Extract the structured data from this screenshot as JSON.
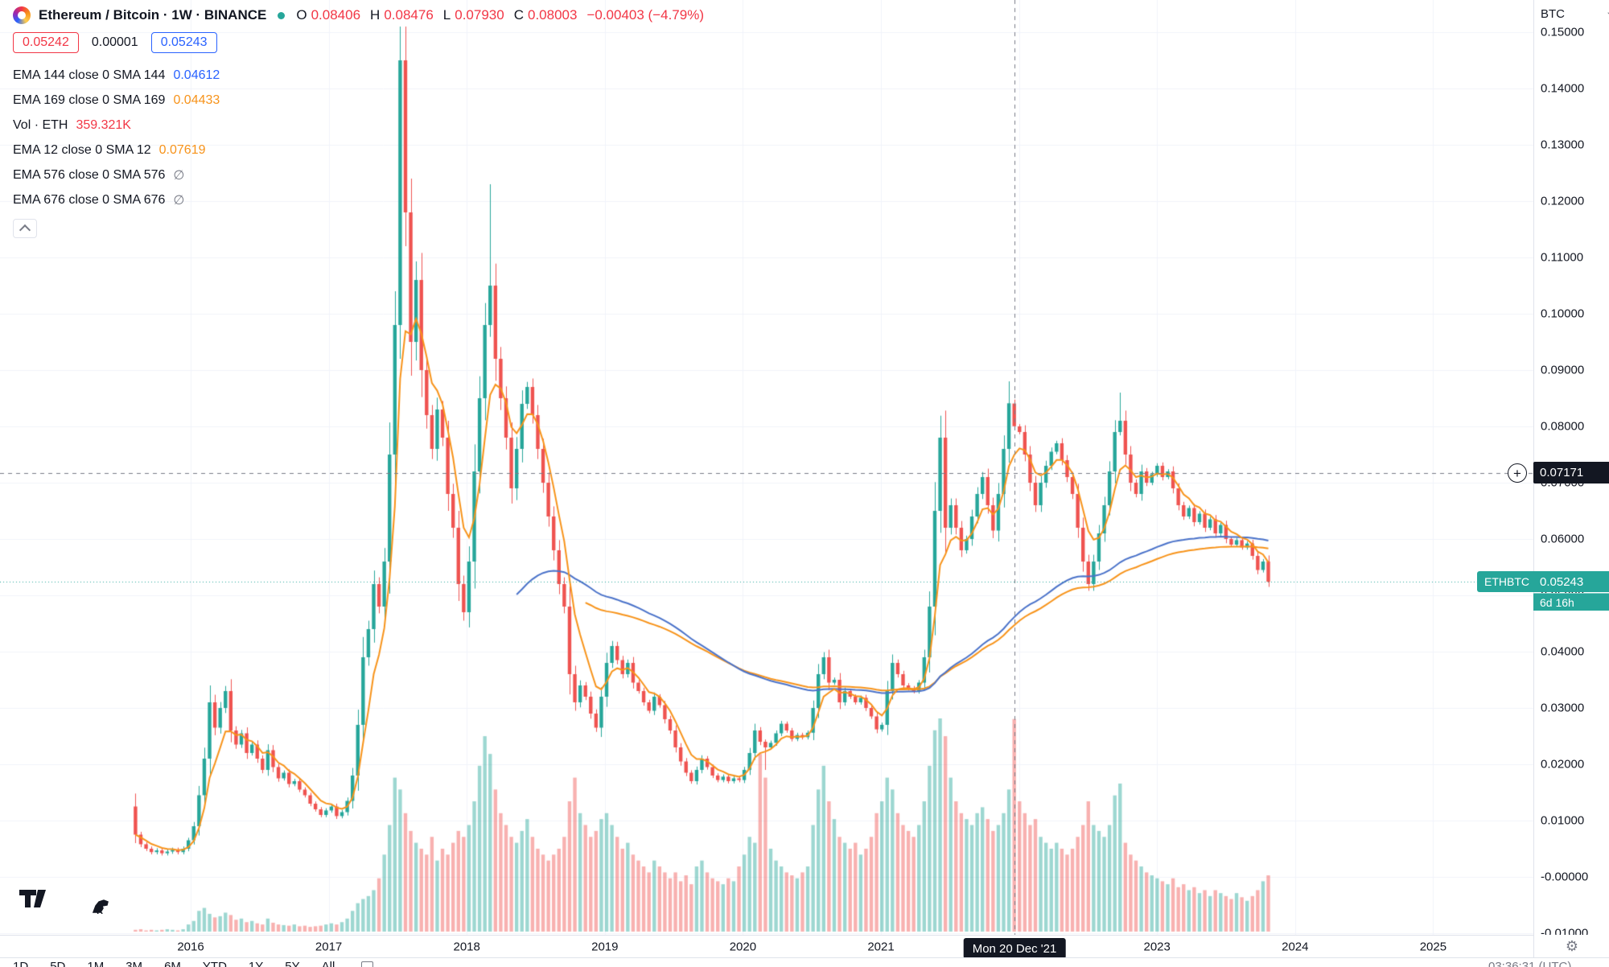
{
  "header": {
    "symbol_title": "Ethereum / Bitcoin · 1W · BINANCE",
    "ohlc": {
      "o_label": "O",
      "o": "0.08406",
      "h_label": "H",
      "h": "0.08476",
      "l_label": "L",
      "l": "0.07930",
      "c_label": "C",
      "c": "0.08003",
      "change": "−0.00403 (−4.79%)"
    },
    "bid": "0.05242",
    "spread": "0.00001",
    "ask": "0.05243"
  },
  "legend": {
    "rows": [
      {
        "label": "EMA 144 close 0 SMA 144",
        "value": "0.04612",
        "color": "#2962FF"
      },
      {
        "label": "EMA 169 close 0 SMA 169",
        "value": "0.04433",
        "color": "#F7931A"
      },
      {
        "label": "Vol · ETH",
        "value": "359.321K",
        "color": "#F23645"
      },
      {
        "label": "EMA 12 close 0 SMA 12",
        "value": "0.07619",
        "color": "#F7931A"
      },
      {
        "label": "EMA 576 close 0 SMA 576",
        "value": "∅",
        "color": "#787B86"
      },
      {
        "label": "EMA 676 close 0 SMA 676",
        "value": "∅",
        "color": "#787B86"
      }
    ]
  },
  "price_axis": {
    "currency": "BTC",
    "labels": [
      {
        "text": "0.15000",
        "value": 0.15
      },
      {
        "text": "0.14000",
        "value": 0.14
      },
      {
        "text": "0.13000",
        "value": 0.13
      },
      {
        "text": "0.12000",
        "value": 0.12
      },
      {
        "text": "0.11000",
        "value": 0.11
      },
      {
        "text": "0.10000",
        "value": 0.1
      },
      {
        "text": "0.09000",
        "value": 0.09
      },
      {
        "text": "0.08000",
        "value": 0.08
      },
      {
        "text": "0.07000",
        "value": 0.07
      },
      {
        "text": "0.06000",
        "value": 0.06
      },
      {
        "text": "0.05000",
        "value": 0.05
      },
      {
        "text": "0.04000",
        "value": 0.04
      },
      {
        "text": "0.03000",
        "value": 0.03
      },
      {
        "text": "0.02000",
        "value": 0.02
      },
      {
        "text": "0.01000",
        "value": 0.01
      },
      {
        "text": "-0.00000",
        "value": 0.0
      },
      {
        "text": "-0.01000",
        "value": -0.01
      }
    ]
  },
  "time_axis": {
    "labels": [
      {
        "text": "2016",
        "year": 2016
      },
      {
        "text": "2017",
        "year": 2017
      },
      {
        "text": "2018",
        "year": 2018
      },
      {
        "text": "2019",
        "year": 2019
      },
      {
        "text": "2020",
        "year": 2020
      },
      {
        "text": "2021",
        "year": 2021
      },
      {
        "text": "2022",
        "year": 2022
      },
      {
        "text": "2023",
        "year": 2023
      },
      {
        "text": "2024",
        "year": 2024
      },
      {
        "text": "2025",
        "year": 2025
      }
    ],
    "crosshair_label": "Mon 20 Dec '21",
    "clock": "03:36:31 (UTC)"
  },
  "overlays": {
    "crosshair_price": "0.07171",
    "symbol_chip": "ETHBTC",
    "last_price": "0.05243",
    "countdown": "6d 16h"
  },
  "bottom_toolbar": {
    "ranges": [
      "1D",
      "5D",
      "1M",
      "3M",
      "6M",
      "YTD",
      "1Y",
      "5Y",
      "All"
    ]
  },
  "colors": {
    "up": "#26A69A",
    "down": "#EF5350",
    "up_vol": "rgba(38,166,154,0.45)",
    "down_vol": "rgba(239,83,80,0.45)",
    "ema_fast": "#F7931A",
    "ema_144": "#4A72C9",
    "ema_169": "#F7931A",
    "grid": "#F0F3FA",
    "crosshair": "#787B86",
    "last_price_line": "#26A69A",
    "label_dark_bg": "#131722",
    "accent_teal": "#26A69A",
    "red": "#F23645",
    "blue": "#2962FF",
    "axis_text": "#131722"
  },
  "chart_data": {
    "type": "candlestick",
    "symbol": "ETHBTC",
    "timeframe": "1W",
    "ylim": [
      -0.01,
      0.15
    ],
    "x_start_year": 2015.6,
    "weeks_per_candle": 2,
    "closes": [
      0.0075,
      0.0058,
      0.005,
      0.0044,
      0.0047,
      0.0042,
      0.0045,
      0.0048,
      0.0044,
      0.005,
      0.0065,
      0.009,
      0.0145,
      0.021,
      0.031,
      0.0265,
      0.03,
      0.033,
      0.026,
      0.0235,
      0.0255,
      0.022,
      0.0235,
      0.021,
      0.019,
      0.0225,
      0.0195,
      0.0175,
      0.0185,
      0.0165,
      0.017,
      0.0155,
      0.0145,
      0.013,
      0.012,
      0.011,
      0.0118,
      0.0125,
      0.0108,
      0.0115,
      0.0135,
      0.018,
      0.027,
      0.039,
      0.044,
      0.052,
      0.048,
      0.056,
      0.075,
      0.098,
      0.145,
      0.118,
      0.095,
      0.106,
      0.09,
      0.082,
      0.076,
      0.083,
      0.078,
      0.068,
      0.062,
      0.052,
      0.047,
      0.056,
      0.072,
      0.085,
      0.098,
      0.105,
      0.092,
      0.085,
      0.078,
      0.069,
      0.076,
      0.084,
      0.087,
      0.082,
      0.076,
      0.07,
      0.064,
      0.058,
      0.052,
      0.048,
      0.036,
      0.031,
      0.034,
      0.032,
      0.029,
      0.0265,
      0.032,
      0.038,
      0.041,
      0.0385,
      0.036,
      0.038,
      0.0345,
      0.033,
      0.031,
      0.0295,
      0.032,
      0.0305,
      0.028,
      0.026,
      0.023,
      0.0205,
      0.0185,
      0.017,
      0.019,
      0.021,
      0.0195,
      0.018,
      0.0172,
      0.0178,
      0.017,
      0.0175,
      0.0172,
      0.019,
      0.022,
      0.026,
      0.024,
      0.023,
      0.0238,
      0.0255,
      0.0272,
      0.026,
      0.0245,
      0.0252,
      0.0248,
      0.0256,
      0.03,
      0.036,
      0.039,
      0.0345,
      0.035,
      0.031,
      0.033,
      0.032,
      0.031,
      0.0318,
      0.03,
      0.0285,
      0.0262,
      0.027,
      0.033,
      0.038,
      0.036,
      0.034,
      0.0335,
      0.033,
      0.0345,
      0.039,
      0.048,
      0.065,
      0.078,
      0.062,
      0.066,
      0.062,
      0.058,
      0.06,
      0.064,
      0.068,
      0.071,
      0.066,
      0.0615,
      0.068,
      0.076,
      0.0841,
      0.08,
      0.079,
      0.075,
      0.07,
      0.066,
      0.07,
      0.073,
      0.0755,
      0.077,
      0.074,
      0.071,
      0.068,
      0.062,
      0.056,
      0.052,
      0.056,
      0.061,
      0.066,
      0.072,
      0.079,
      0.081,
      0.075,
      0.07,
      0.068,
      0.072,
      0.07,
      0.0715,
      0.073,
      0.071,
      0.072,
      0.069,
      0.066,
      0.064,
      0.0655,
      0.063,
      0.0645,
      0.062,
      0.0635,
      0.061,
      0.0625,
      0.06,
      0.059,
      0.0598,
      0.0585,
      0.0592,
      0.057,
      0.0545,
      0.056,
      0.0524
    ],
    "volumes": [
      3,
      4,
      2,
      3,
      2,
      3,
      4,
      3,
      2,
      4,
      12,
      18,
      35,
      40,
      30,
      24,
      26,
      32,
      28,
      20,
      22,
      16,
      18,
      14,
      12,
      22,
      15,
      12,
      11,
      10,
      12,
      9,
      10,
      8,
      9,
      10,
      12,
      14,
      12,
      16,
      22,
      35,
      48,
      55,
      60,
      70,
      90,
      130,
      180,
      260,
      240,
      200,
      170,
      150,
      140,
      130,
      160,
      120,
      140,
      130,
      150,
      170,
      160,
      180,
      220,
      280,
      330,
      300,
      240,
      200,
      180,
      160,
      150,
      170,
      190,
      160,
      140,
      130,
      120,
      130,
      140,
      160,
      220,
      260,
      200,
      180,
      160,
      170,
      190,
      200,
      180,
      160,
      140,
      150,
      130,
      120,
      110,
      100,
      120,
      110,
      100,
      90,
      100,
      85,
      95,
      80,
      110,
      120,
      100,
      90,
      85,
      80,
      90,
      85,
      110,
      130,
      160,
      150,
      300,
      260,
      140,
      120,
      110,
      100,
      95,
      90,
      100,
      110,
      180,
      240,
      280,
      220,
      190,
      160,
      150,
      140,
      150,
      130,
      140,
      160,
      200,
      220,
      260,
      240,
      200,
      180,
      170,
      160,
      180,
      220,
      280,
      340,
      360,
      330,
      260,
      220,
      200,
      190,
      180,
      200,
      210,
      190,
      170,
      180,
      200,
      240,
      359,
      220,
      200,
      180,
      190,
      160,
      150,
      140,
      150,
      140,
      130,
      140,
      160,
      180,
      220,
      180,
      170,
      160,
      180,
      230,
      250,
      150,
      130,
      120,
      110,
      100,
      95,
      90,
      85,
      80,
      90,
      75,
      80,
      70,
      75,
      65,
      70,
      60,
      70,
      65,
      60,
      55,
      65,
      58,
      52,
      60,
      70,
      85,
      95
    ],
    "special_candles": {
      "0": {
        "o": 0.0125,
        "h": 0.0148
      },
      "50": {
        "h": 0.151
      },
      "67": {
        "h": 0.123
      },
      "119": {
        "l": 0.019
      },
      "165": {
        "h": 0.088
      },
      "166": {
        "o": 0.08406,
        "h": 0.08476,
        "l": 0.0793,
        "c": 0.08003
      },
      "186": {
        "h": 0.086
      },
      "214": {
        "l": 0.0515
      }
    },
    "emas": [
      {
        "period": 169,
        "color_key": "ema_169"
      },
      {
        "period": 144,
        "color_key": "ema_144"
      },
      {
        "period": 12,
        "color_key": "ema_fast"
      }
    ],
    "crosshair": {
      "index": 166,
      "price": 0.07171
    },
    "last_price": 0.05243,
    "volume_max_k": 360
  }
}
